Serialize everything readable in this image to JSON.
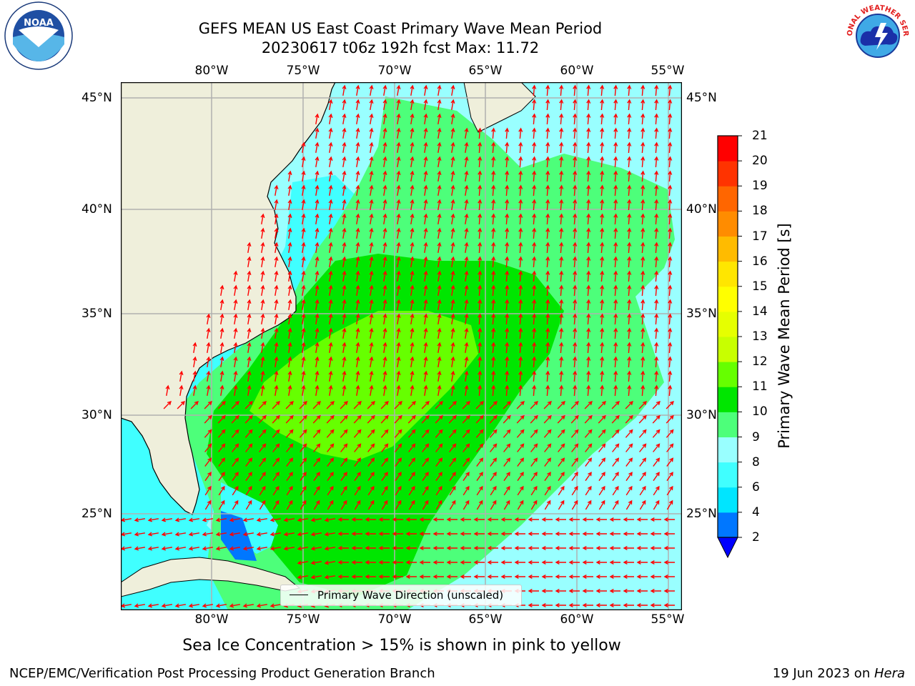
{
  "header": {
    "title_line1": "GEFS MEAN US East Coast Primary Wave Mean Period",
    "title_line2": "20230617 t06z 192h fcst   Max: 11.72"
  },
  "map": {
    "lon_labels": [
      "80°W",
      "75°W",
      "70°W",
      "65°W",
      "60°W",
      "55°W"
    ],
    "lat_labels": [
      "45°N",
      "40°N",
      "35°N",
      "30°N",
      "25°N"
    ],
    "legend_label": "Primary Wave Direction (unscaled)",
    "extent": {
      "lon_min": -85,
      "lon_max": -54.3,
      "lat_min": 20.5,
      "lat_max": 46
    }
  },
  "colorbar": {
    "label": "Primary Wave Mean Period [s]",
    "ticks": [
      "21",
      "20",
      "19",
      "18",
      "17",
      "16",
      "15",
      "14",
      "13",
      "12",
      "11",
      "10",
      "9",
      "8",
      "6",
      "4",
      "2"
    ],
    "colors": [
      "#0000ff",
      "#0077ff",
      "#00e5ff",
      "#40ffff",
      "#99ffff",
      "#4dff7a",
      "#00e600",
      "#66ff00",
      "#c8ff00",
      "#e6ff00",
      "#ffff00",
      "#ffe600",
      "#ffbb00",
      "#ff8c00",
      "#ff6600",
      "#ff3300",
      "#ff0000"
    ]
  },
  "note": "Sea Ice Concentration > 15% is shown in pink to yellow",
  "footer": {
    "left": "NCEP/EMC/Verification Post Processing Product Generation Branch",
    "right_prefix": "19 Jun 2023 on ",
    "right_italic": "Hera"
  },
  "logos": {
    "noaa_text": "NOAA",
    "nws_text": "NATIONAL WEATHER SERVICE"
  }
}
